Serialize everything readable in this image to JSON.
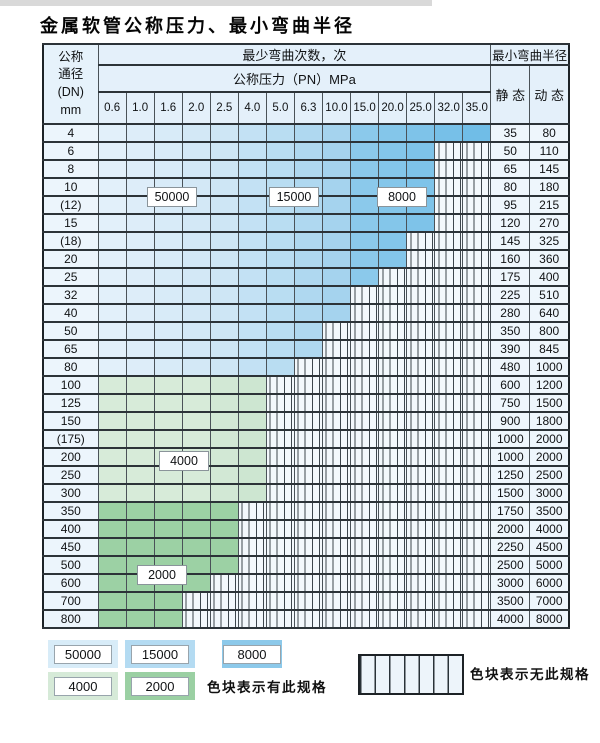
{
  "page": {
    "title": "金属软管公称压力、最小弯曲半径"
  },
  "table": {
    "header": {
      "dn_lines": [
        "公称",
        "通径",
        "(DN)",
        "mm"
      ],
      "bend_cycles_label": "最少弯曲次数，次",
      "pressure_label": "公称压力（PN）MPa",
      "pressure_columns": [
        "0.6",
        "1.0",
        "1.6",
        "2.0",
        "2.5",
        "4.0",
        "5.0",
        "6.3",
        "10.0",
        "15.0",
        "20.0",
        "25.0",
        "32.0",
        "35.0"
      ],
      "radius_label": "最小弯曲半径",
      "static_label": "静 态",
      "dynamic_label": "动 态"
    },
    "cycle_zones": {
      "50000": "0.6–2.5 MPa (blue rows DN4–80)",
      "15000": "4.0–10.0 MPa (blue rows DN4–80)",
      "8000": "15.0–35.0 MPa (blue rows DN4–80)",
      "4000": "rows DN100–300",
      "2000": "rows DN350–800"
    },
    "rows": [
      {
        "dn": "4",
        "zone": "blue",
        "colored": 14,
        "static": "35",
        "dynamic": "80"
      },
      {
        "dn": "6",
        "zone": "blue",
        "colored": 12,
        "static": "50",
        "dynamic": "110"
      },
      {
        "dn": "8",
        "zone": "blue",
        "colored": 12,
        "static": "65",
        "dynamic": "145"
      },
      {
        "dn": "10",
        "zone": "blue",
        "colored": 12,
        "static": "80",
        "dynamic": "180"
      },
      {
        "dn": "(12)",
        "zone": "blue",
        "colored": 12,
        "static": "95",
        "dynamic": "215"
      },
      {
        "dn": "15",
        "zone": "blue",
        "colored": 12,
        "static": "120",
        "dynamic": "270"
      },
      {
        "dn": "(18)",
        "zone": "blue",
        "colored": 11,
        "static": "145",
        "dynamic": "325"
      },
      {
        "dn": "20",
        "zone": "blue",
        "colored": 11,
        "static": "160",
        "dynamic": "360"
      },
      {
        "dn": "25",
        "zone": "blue",
        "colored": 10,
        "static": "175",
        "dynamic": "400"
      },
      {
        "dn": "32",
        "zone": "blue",
        "colored": 9,
        "static": "225",
        "dynamic": "510"
      },
      {
        "dn": "40",
        "zone": "blue",
        "colored": 9,
        "static": "280",
        "dynamic": "640"
      },
      {
        "dn": "50",
        "zone": "blue",
        "colored": 8,
        "static": "350",
        "dynamic": "800"
      },
      {
        "dn": "65",
        "zone": "blue",
        "colored": 8,
        "static": "390",
        "dynamic": "845"
      },
      {
        "dn": "80",
        "zone": "blue",
        "colored": 7,
        "static": "480",
        "dynamic": "1000"
      },
      {
        "dn": "100",
        "zone": "green-4000",
        "colored": 6,
        "static": "600",
        "dynamic": "1200"
      },
      {
        "dn": "125",
        "zone": "green-4000",
        "colored": 6,
        "static": "750",
        "dynamic": "1500"
      },
      {
        "dn": "150",
        "zone": "green-4000",
        "colored": 6,
        "static": "900",
        "dynamic": "1800"
      },
      {
        "dn": "(175)",
        "zone": "green-4000",
        "colored": 6,
        "static": "1000",
        "dynamic": "2000"
      },
      {
        "dn": "200",
        "zone": "green-4000",
        "colored": 6,
        "static": "1000",
        "dynamic": "2000"
      },
      {
        "dn": "250",
        "zone": "green-4000",
        "colored": 6,
        "static": "1250",
        "dynamic": "2500"
      },
      {
        "dn": "300",
        "zone": "green-4000",
        "colored": 6,
        "static": "1500",
        "dynamic": "3000"
      },
      {
        "dn": "350",
        "zone": "green-2000",
        "colored": 5,
        "static": "1750",
        "dynamic": "3500"
      },
      {
        "dn": "400",
        "zone": "green-2000",
        "colored": 5,
        "static": "2000",
        "dynamic": "4000"
      },
      {
        "dn": "450",
        "zone": "green-2000",
        "colored": 5,
        "static": "2250",
        "dynamic": "4500"
      },
      {
        "dn": "500",
        "zone": "green-2000",
        "colored": 5,
        "static": "2500",
        "dynamic": "5000"
      },
      {
        "dn": "600",
        "zone": "green-2000",
        "colored": 4,
        "static": "3000",
        "dynamic": "6000"
      },
      {
        "dn": "700",
        "zone": "green-2000",
        "colored": 3,
        "static": "3500",
        "dynamic": "7000"
      },
      {
        "dn": "800",
        "zone": "green-2000",
        "colored": 3,
        "static": "4000",
        "dynamic": "8000"
      }
    ]
  },
  "inline_labels": {
    "l50000": "50000",
    "l15000": "15000",
    "l8000": "8000",
    "l4000": "4000",
    "l2000": "2000"
  },
  "legend": {
    "items": [
      {
        "label": "50000",
        "color": "#d8ecf8"
      },
      {
        "label": "15000",
        "color": "#b4dbf2"
      },
      {
        "label": "8000",
        "color": "#8cc9ea"
      },
      {
        "label": "4000",
        "color": "#d6ead8"
      },
      {
        "label": "2000",
        "color": "#9bd0a3"
      }
    ],
    "has_spec_text": "色块表示有此规格",
    "no_spec_text": "色块表示无此规格"
  }
}
